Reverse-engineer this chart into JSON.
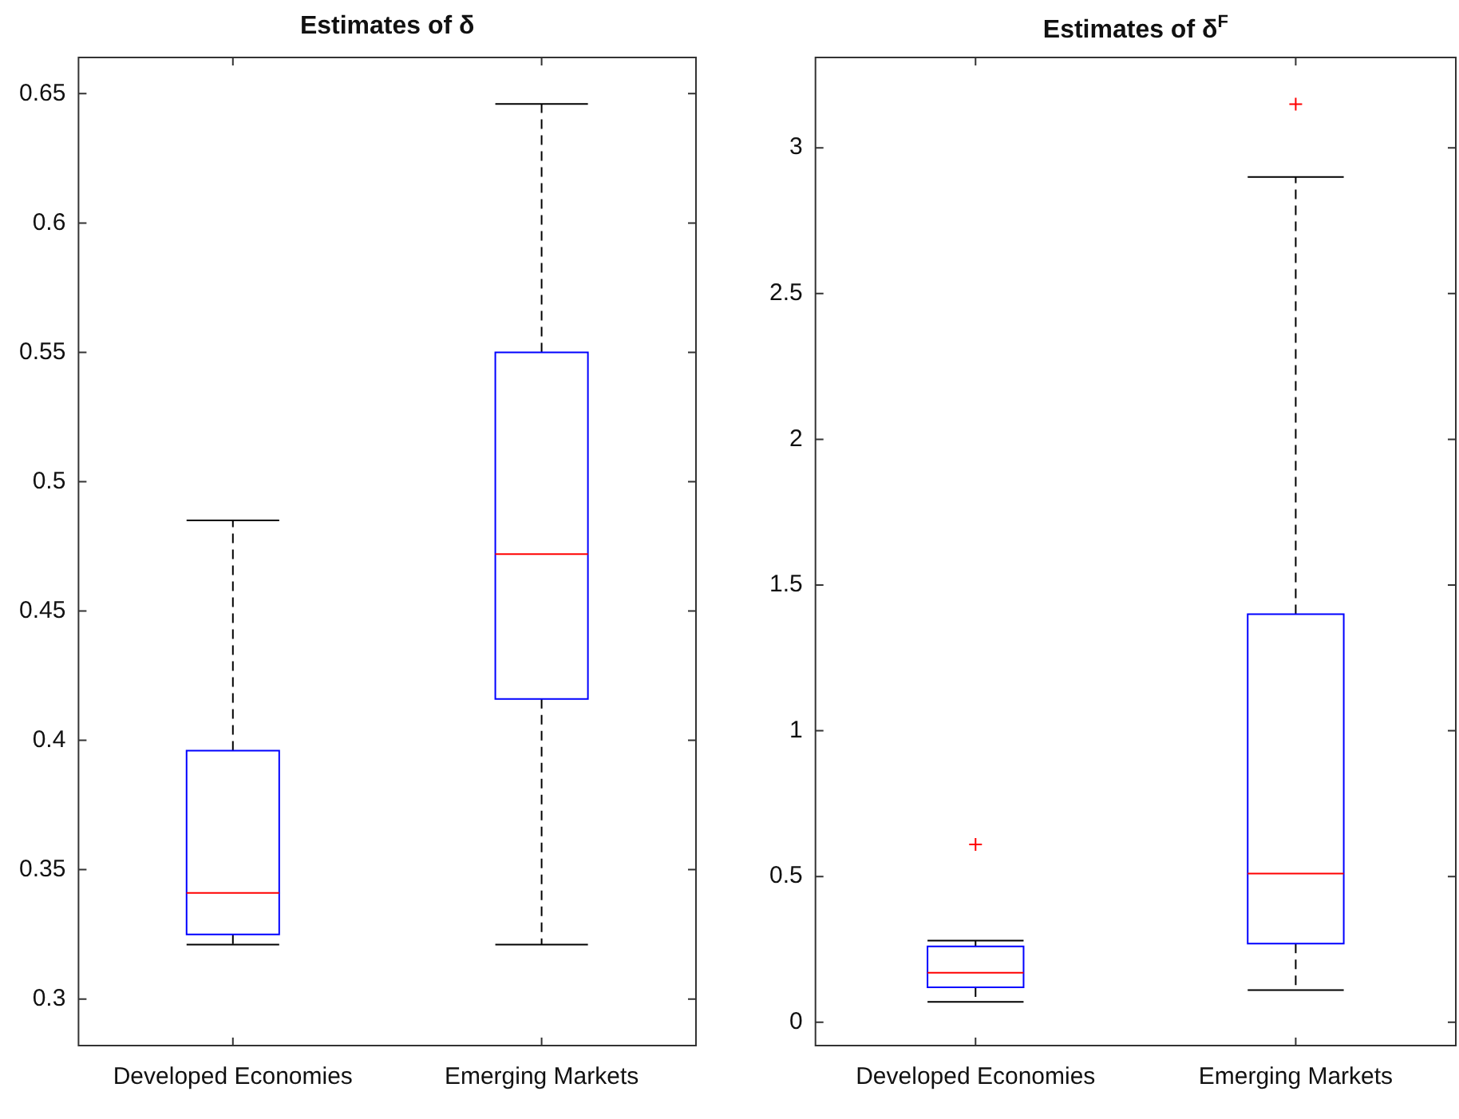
{
  "chart_data": [
    {
      "type": "box",
      "title": "Estimates of δ",
      "categories": [
        "Developed Economies",
        "Emerging Markets"
      ],
      "color": "#0000ff",
      "boxes": [
        {
          "low": 0.321,
          "q1": 0.325,
          "median": 0.341,
          "q3": 0.396,
          "high": 0.485
        },
        {
          "low": 0.321,
          "q1": 0.416,
          "median": 0.472,
          "q3": 0.55,
          "high": 0.646
        }
      ],
      "ylim": [
        0.282,
        0.664
      ],
      "yticks": [
        0.3,
        0.35,
        0.4,
        0.45,
        0.5,
        0.55,
        0.6,
        0.65
      ],
      "grid": false,
      "legend": false
    },
    {
      "type": "box",
      "title": "Estimates of δ$^{F}$",
      "categories": [
        "Developed Economies",
        "Emerging Markets"
      ],
      "color": "#0000ff",
      "boxes": [
        {
          "low": 0.07,
          "q1": 0.12,
          "median": 0.17,
          "q3": 0.26,
          "high": 0.28,
          "outliers": [
            0.61
          ]
        },
        {
          "low": 0.11,
          "q1": 0.27,
          "median": 0.51,
          "q3": 1.4,
          "high": 2.9,
          "outliers": [
            3.15
          ]
        }
      ],
      "ylim": [
        -0.08,
        3.31
      ],
      "yticks": [
        0,
        0.5,
        1,
        1.5,
        2,
        2.5,
        3
      ],
      "grid": false,
      "legend": false
    }
  ]
}
